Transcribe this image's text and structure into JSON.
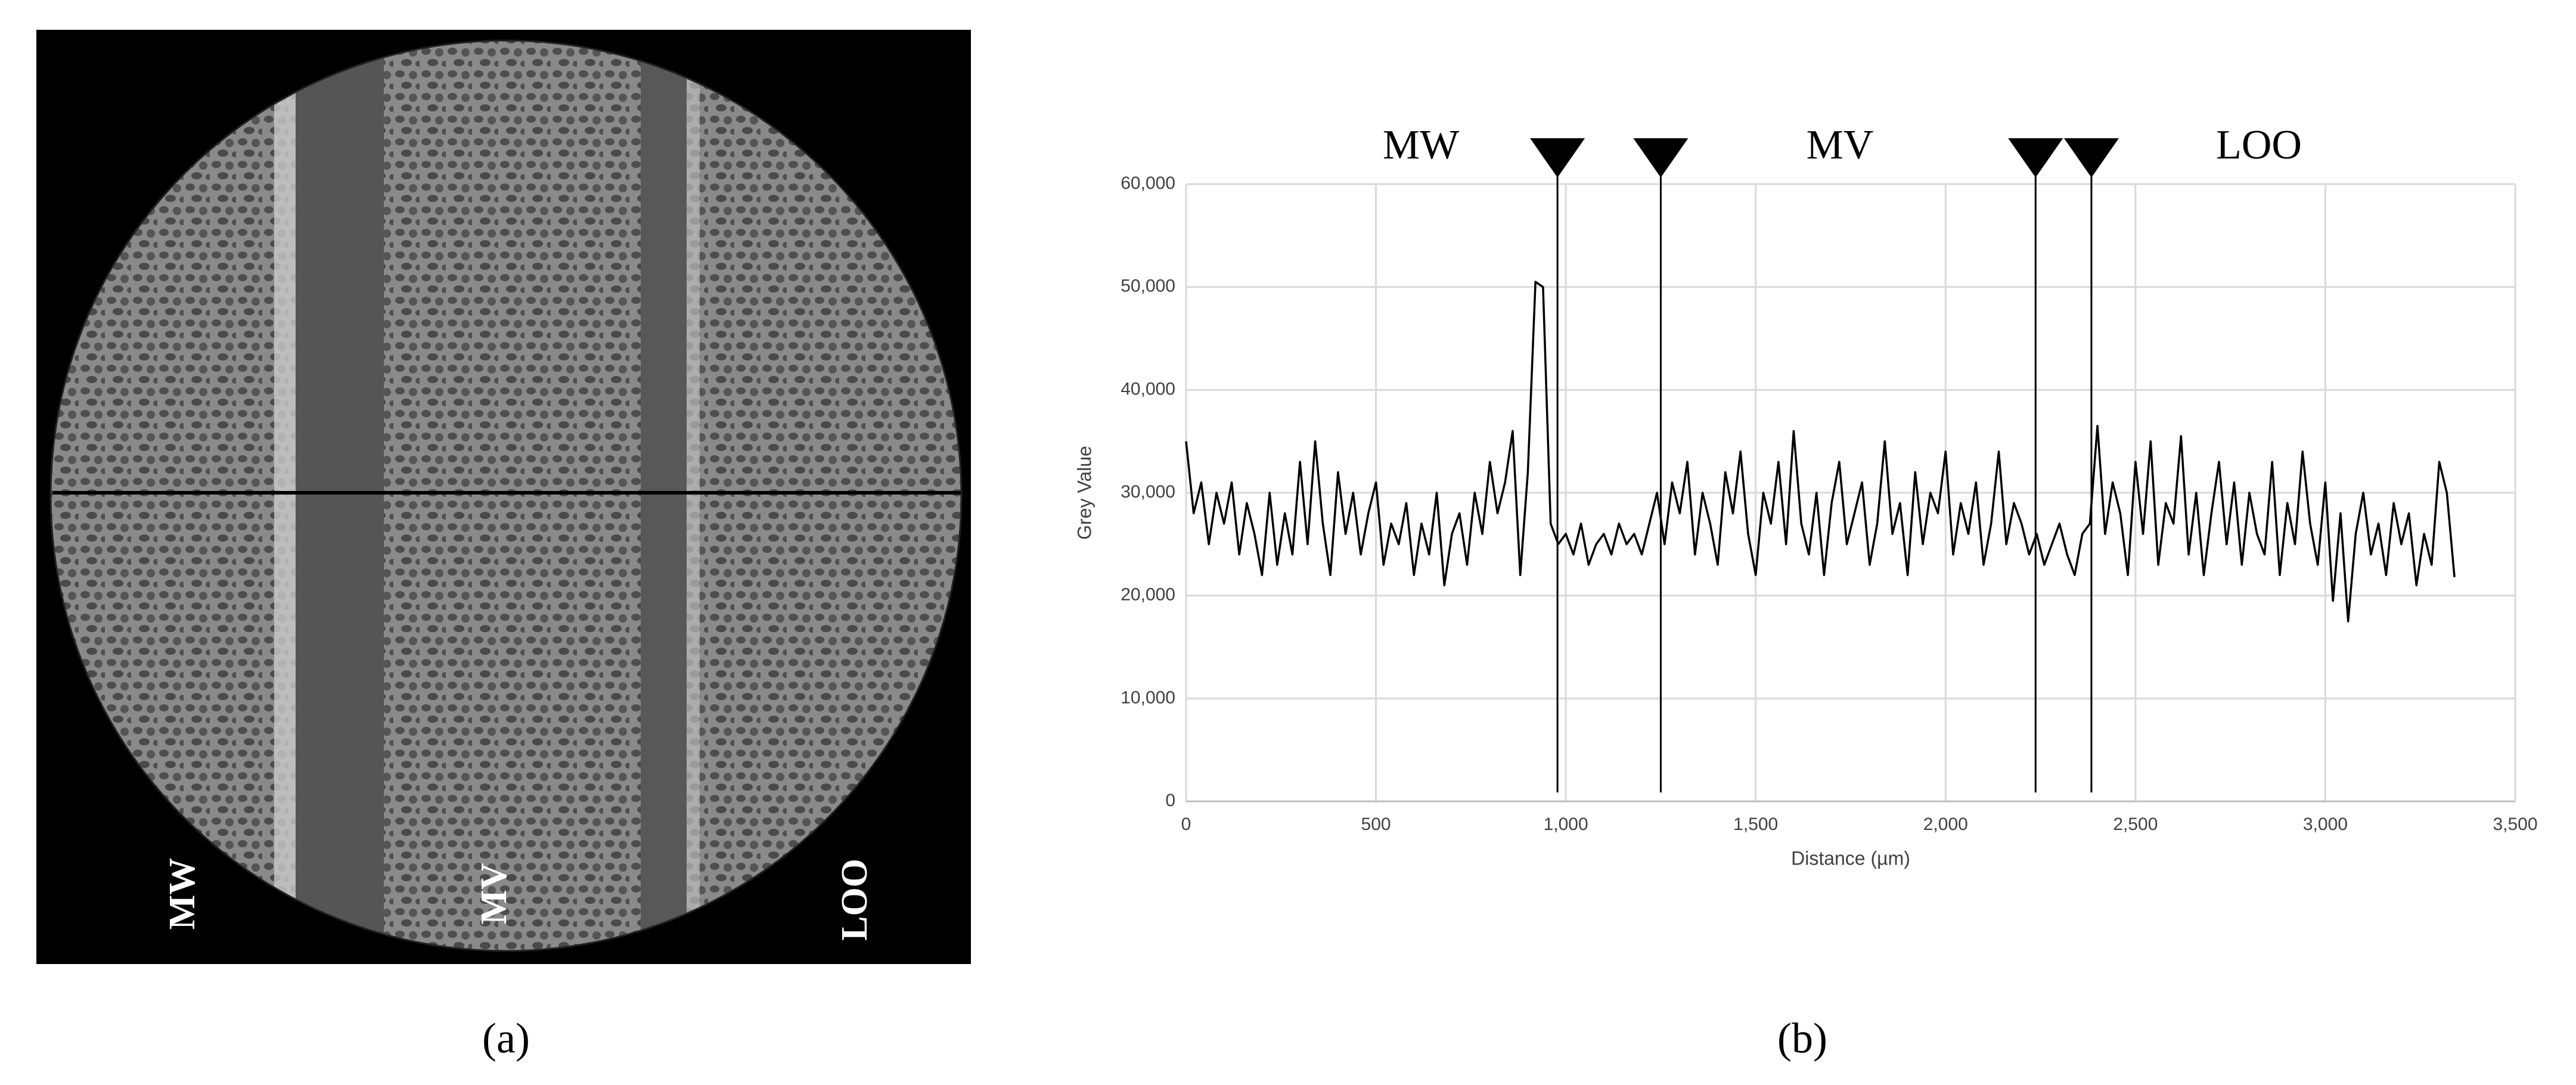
{
  "panel_a": {
    "labels": [
      "MW",
      "MV",
      "LOO"
    ],
    "caption": "(a)"
  },
  "chart_data": {
    "type": "line",
    "caption": "(b)",
    "annotations": [
      "MW",
      "MV",
      "LOO"
    ],
    "markers": [
      978,
      1250,
      2237,
      2384
    ],
    "xlabel": "Distance (µm)",
    "ylabel": "Grey Value",
    "xlim": [
      0,
      3500
    ],
    "xticks": [
      0,
      500,
      {
        "value": 1000,
        "label": "1,000"
      },
      {
        "value": 1500,
        "label": "1,500"
      },
      {
        "value": 2000,
        "label": "2,000"
      },
      {
        "value": 2500,
        "label": "2,500"
      },
      {
        "value": 3000,
        "label": "3,000"
      },
      {
        "value": 3500,
        "label": "3,500"
      }
    ],
    "ylim": [
      0,
      60000
    ],
    "yticks": [
      0,
      {
        "value": 10000,
        "label": "10,000"
      },
      {
        "value": 20000,
        "label": "20,000"
      },
      {
        "value": 30000,
        "label": "30,000"
      },
      {
        "value": 40000,
        "label": "40,000"
      },
      {
        "value": 50000,
        "label": "50,000"
      },
      {
        "value": 60000,
        "label": "60,000"
      }
    ],
    "grid": true,
    "color": "#000000",
    "x": [
      0,
      20,
      40,
      60,
      80,
      100,
      120,
      140,
      160,
      180,
      200,
      220,
      240,
      260,
      280,
      300,
      320,
      340,
      360,
      380,
      400,
      420,
      440,
      460,
      480,
      500,
      520,
      540,
      560,
      580,
      600,
      620,
      640,
      660,
      680,
      700,
      720,
      740,
      760,
      780,
      800,
      820,
      840,
      860,
      880,
      900,
      920,
      940,
      960,
      980,
      1000,
      1020,
      1040,
      1060,
      1080,
      1100,
      1120,
      1140,
      1160,
      1180,
      1200,
      1220,
      1240,
      1260,
      1280,
      1300,
      1320,
      1340,
      1360,
      1380,
      1400,
      1420,
      1440,
      1460,
      1480,
      1500,
      1520,
      1540,
      1560,
      1580,
      1600,
      1620,
      1640,
      1660,
      1680,
      1700,
      1720,
      1740,
      1760,
      1780,
      1800,
      1820,
      1840,
      1860,
      1880,
      1900,
      1920,
      1940,
      1960,
      1980,
      2000,
      2020,
      2040,
      2060,
      2080,
      2100,
      2120,
      2140,
      2160,
      2180,
      2200,
      2220,
      2240,
      2260,
      2280,
      2300,
      2320,
      2340,
      2360,
      2380,
      2400,
      2420,
      2440,
      2460,
      2480,
      2500,
      2520,
      2540,
      2560,
      2580,
      2600,
      2620,
      2640,
      2660,
      2680,
      2700,
      2720,
      2740,
      2760,
      2780,
      2800,
      2820,
      2840,
      2860,
      2880,
      2900,
      2920,
      2940,
      2960,
      2980,
      3000,
      3020,
      3040,
      3060,
      3080,
      3100,
      3120,
      3140,
      3160,
      3180,
      3200,
      3220,
      3240,
      3260,
      3280,
      3300,
      3320,
      3340
    ],
    "values": [
      35000,
      28000,
      31000,
      25000,
      30000,
      27000,
      31000,
      24000,
      29000,
      26000,
      22000,
      30000,
      23000,
      28000,
      24000,
      33000,
      25000,
      35000,
      27000,
      22000,
      32000,
      26000,
      30000,
      24000,
      28000,
      31000,
      23000,
      27000,
      25000,
      29000,
      22000,
      27000,
      24000,
      30000,
      21000,
      26000,
      28000,
      23000,
      30000,
      26000,
      33000,
      28000,
      31000,
      36000,
      22000,
      32000,
      50500,
      50000,
      27000,
      25000,
      26000,
      24000,
      27000,
      23000,
      25000,
      26000,
      24000,
      27000,
      25000,
      26000,
      24000,
      27000,
      30000,
      25000,
      31000,
      28000,
      33000,
      24000,
      30000,
      27000,
      23000,
      32000,
      28000,
      34000,
      26000,
      22000,
      30000,
      27000,
      33000,
      25000,
      36000,
      27000,
      24000,
      30000,
      22000,
      29000,
      33000,
      25000,
      28000,
      31000,
      23000,
      27000,
      35000,
      26000,
      29000,
      22000,
      32000,
      25000,
      30000,
      28000,
      34000,
      24000,
      29000,
      26000,
      31000,
      23000,
      27000,
      34000,
      25000,
      29000,
      27000,
      24000,
      26000,
      23000,
      25000,
      27000,
      24000,
      22000,
      26000,
      27000,
      36500,
      26000,
      31000,
      28000,
      22000,
      33000,
      26000,
      35000,
      23000,
      29000,
      27000,
      35500,
      24000,
      30000,
      22000,
      28000,
      33000,
      25000,
      31000,
      23000,
      30000,
      26000,
      24000,
      33000,
      22000,
      29000,
      25000,
      34000,
      27000,
      23000,
      31000,
      19500,
      28000,
      17500,
      26000,
      30000,
      24000,
      27000,
      22000,
      29000,
      25000,
      28000,
      21000,
      26000,
      23000,
      33000,
      30000,
      21800
    ]
  }
}
